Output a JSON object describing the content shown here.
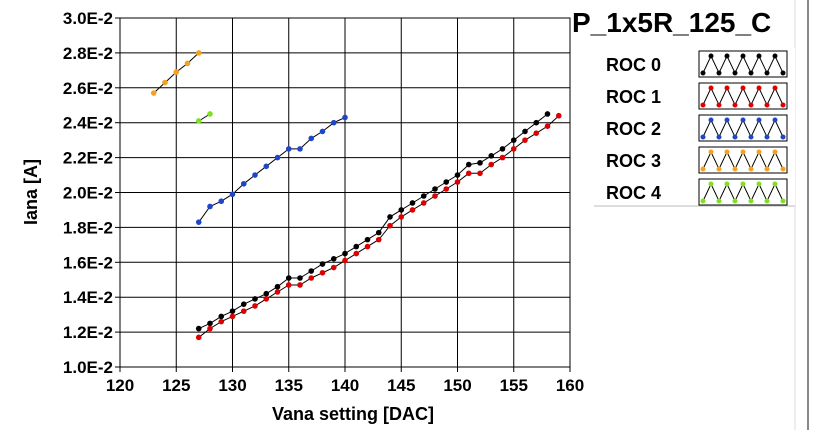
{
  "chart_data": {
    "type": "scatter",
    "title": "P_1x5R_125_C",
    "xlabel": "Vana setting [DAC]",
    "ylabel": "Iana [A]",
    "xlim": [
      120,
      160
    ],
    "ylim": [
      0.01,
      0.03
    ],
    "x_ticks": [
      120,
      125,
      130,
      135,
      140,
      145,
      150,
      155,
      160
    ],
    "x_tick_labels": [
      "120",
      "125",
      "130",
      "135",
      "140",
      "145",
      "150",
      "155",
      "160"
    ],
    "y_ticks": [
      0.01,
      0.012,
      0.014,
      0.016,
      0.018,
      0.02,
      0.022,
      0.024,
      0.026,
      0.028,
      0.03
    ],
    "y_tick_labels": [
      "1.0E-2",
      "1.2E-2",
      "1.4E-2",
      "1.6E-2",
      "1.8E-2",
      "2.0E-2",
      "2.2E-2",
      "2.4E-2",
      "2.6E-2",
      "2.8E-2",
      "3.0E-2"
    ],
    "grid": true,
    "legend_position": "top-right",
    "series": [
      {
        "name": "ROC 0",
        "color": "#000000",
        "x": [
          127,
          128,
          129,
          130,
          131,
          132,
          133,
          134,
          135,
          136,
          137,
          138,
          139,
          140,
          141,
          142,
          143,
          144,
          145,
          146,
          147,
          148,
          149,
          150,
          151,
          152,
          153,
          154,
          155,
          156,
          157,
          158
        ],
        "y": [
          0.0122,
          0.0125,
          0.0129,
          0.0132,
          0.0136,
          0.0139,
          0.0142,
          0.0146,
          0.0151,
          0.0151,
          0.0155,
          0.0159,
          0.0162,
          0.0165,
          0.0169,
          0.0173,
          0.0177,
          0.0186,
          0.019,
          0.0194,
          0.0198,
          0.0202,
          0.0206,
          0.021,
          0.0216,
          0.0217,
          0.0221,
          0.0225,
          0.023,
          0.0235,
          0.024,
          0.0245
        ]
      },
      {
        "name": "ROC 1",
        "color": "#dd0000",
        "x": [
          127,
          128,
          129,
          130,
          131,
          132,
          133,
          134,
          135,
          136,
          137,
          138,
          139,
          140,
          141,
          142,
          143,
          144,
          145,
          146,
          147,
          148,
          149,
          150,
          151,
          152,
          153,
          154,
          155,
          156,
          157,
          158,
          159
        ],
        "y": [
          0.0117,
          0.0122,
          0.0126,
          0.0129,
          0.0132,
          0.0135,
          0.0139,
          0.0143,
          0.0147,
          0.0147,
          0.0151,
          0.0154,
          0.0157,
          0.0161,
          0.0165,
          0.0169,
          0.0173,
          0.0181,
          0.0186,
          0.019,
          0.0194,
          0.0198,
          0.0202,
          0.0206,
          0.0211,
          0.0211,
          0.0216,
          0.022,
          0.0225,
          0.023,
          0.0234,
          0.0238,
          0.0244
        ]
      },
      {
        "name": "ROC 2",
        "color": "#1e46c8",
        "x": [
          127,
          128,
          129,
          130,
          131,
          132,
          133,
          134,
          135,
          136,
          137,
          138,
          139,
          140
        ],
        "y": [
          0.0183,
          0.0192,
          0.0195,
          0.0199,
          0.0205,
          0.021,
          0.0215,
          0.022,
          0.0225,
          0.0225,
          0.0231,
          0.0235,
          0.024,
          0.0243
        ]
      },
      {
        "name": "ROC 3",
        "color": "#f5a020",
        "x": [
          123,
          124,
          125,
          126,
          127
        ],
        "y": [
          0.0257,
          0.0263,
          0.0269,
          0.0274,
          0.028
        ]
      },
      {
        "name": "ROC 4",
        "color": "#7ee020",
        "x": [
          127,
          128
        ],
        "y": [
          0.0241,
          0.0245
        ]
      }
    ]
  }
}
